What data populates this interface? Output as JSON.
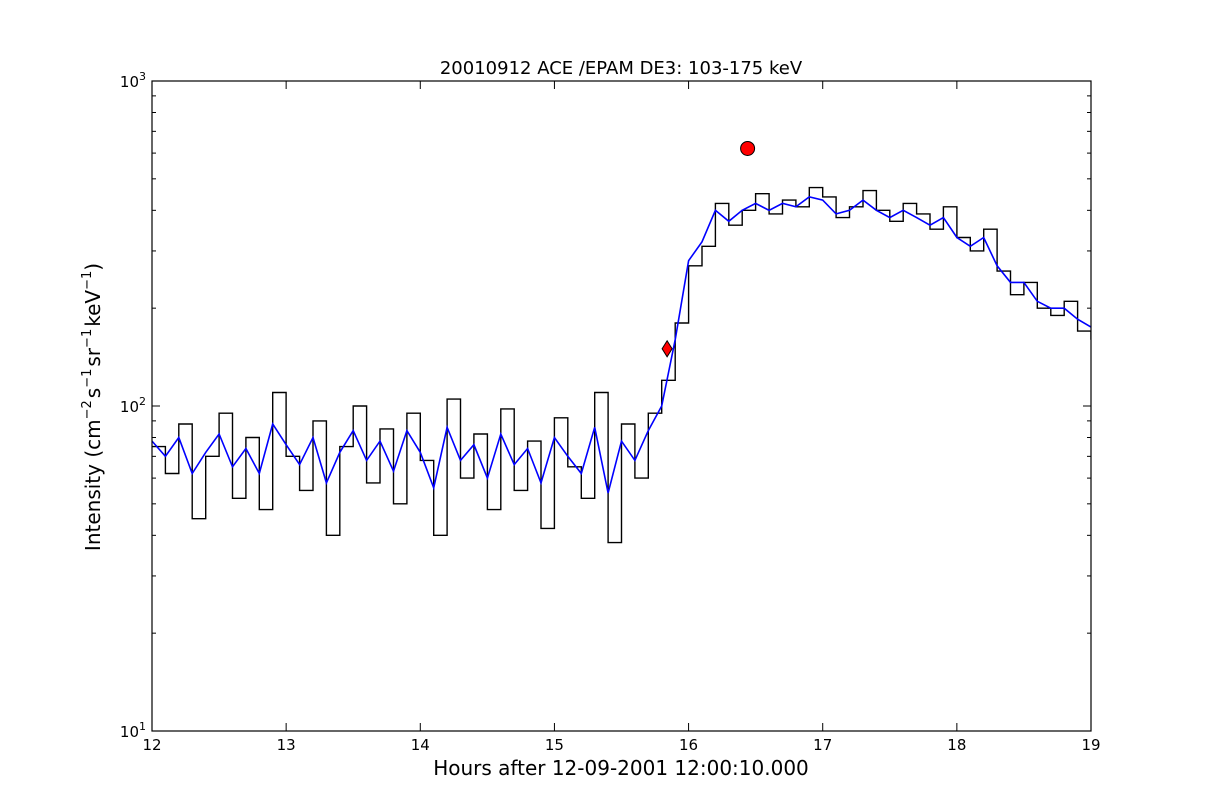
{
  "chart_data": {
    "type": "line",
    "title": "20010912 ACE /EPAM DE3: 103-175 keV",
    "xlabel": "Hours after 12-09-2001 12:00:10.000",
    "ylabel_main": "Intensity (cm",
    "ylabel_parts": [
      "−2",
      "s",
      "−1",
      "sr",
      "−1",
      "keV",
      "−1",
      ")"
    ],
    "xlim": [
      12,
      19
    ],
    "ylim": [
      10,
      1000
    ],
    "yscale": "log",
    "x_ticks": [
      "12",
      "13",
      "14",
      "15",
      "16",
      "17",
      "18",
      "19"
    ],
    "y_ticks": [
      {
        "base": "10",
        "exp": "1",
        "value": 10
      },
      {
        "base": "10",
        "exp": "2",
        "value": 100
      },
      {
        "base": "10",
        "exp": "3",
        "value": 1000
      }
    ],
    "grid": false,
    "series": [
      {
        "color": "#000000",
        "style": "steps",
        "x": [
          12.0,
          12.1,
          12.2,
          12.3,
          12.4,
          12.5,
          12.6,
          12.7,
          12.8,
          12.9,
          13.0,
          13.1,
          13.2,
          13.3,
          13.4,
          13.5,
          13.6,
          13.7,
          13.8,
          13.9,
          14.0,
          14.1,
          14.2,
          14.3,
          14.4,
          14.5,
          14.6,
          14.7,
          14.8,
          14.9,
          15.0,
          15.1,
          15.2,
          15.3,
          15.4,
          15.5,
          15.6,
          15.7,
          15.8,
          15.9,
          16.0,
          16.1,
          16.2,
          16.3,
          16.4,
          16.5,
          16.6,
          16.7,
          16.8,
          16.9,
          17.0,
          17.1,
          17.2,
          17.3,
          17.4,
          17.5,
          17.6,
          17.7,
          17.8,
          17.9,
          18.0,
          18.1,
          18.2,
          18.3,
          18.4,
          18.5,
          18.6,
          18.7,
          18.8,
          18.9,
          19.0
        ],
        "y": [
          75,
          62,
          88,
          45,
          70,
          95,
          52,
          80,
          48,
          110,
          70,
          55,
          90,
          40,
          75,
          100,
          58,
          85,
          50,
          95,
          68,
          40,
          105,
          60,
          82,
          48,
          98,
          55,
          78,
          42,
          92,
          65,
          52,
          110,
          38,
          88,
          60,
          95,
          120,
          180,
          270,
          310,
          420,
          360,
          400,
          450,
          390,
          430,
          410,
          470,
          440,
          380,
          410,
          460,
          400,
          370,
          420,
          390,
          350,
          410,
          330,
          300,
          350,
          260,
          220,
          240,
          200,
          190,
          210,
          170,
          160
        ]
      },
      {
        "color": "#0000ff",
        "style": "line",
        "x": [
          12.0,
          12.1,
          12.2,
          12.3,
          12.4,
          12.5,
          12.6,
          12.7,
          12.8,
          12.9,
          13.0,
          13.1,
          13.2,
          13.3,
          13.4,
          13.5,
          13.6,
          13.7,
          13.8,
          13.9,
          14.0,
          14.1,
          14.2,
          14.3,
          14.4,
          14.5,
          14.6,
          14.7,
          14.8,
          14.9,
          15.0,
          15.1,
          15.2,
          15.3,
          15.4,
          15.5,
          15.6,
          15.7,
          15.8,
          15.9,
          16.0,
          16.1,
          16.2,
          16.3,
          16.4,
          16.5,
          16.6,
          16.7,
          16.8,
          16.9,
          17.0,
          17.1,
          17.2,
          17.3,
          17.4,
          17.5,
          17.6,
          17.7,
          17.8,
          17.9,
          18.0,
          18.1,
          18.2,
          18.3,
          18.4,
          18.5,
          18.6,
          18.7,
          18.8,
          18.9,
          19.0
        ],
        "y": [
          78,
          70,
          80,
          62,
          72,
          82,
          65,
          74,
          62,
          88,
          76,
          66,
          80,
          58,
          72,
          84,
          68,
          78,
          63,
          84,
          72,
          56,
          86,
          68,
          76,
          60,
          82,
          66,
          74,
          58,
          80,
          70,
          62,
          86,
          54,
          78,
          68,
          84,
          100,
          160,
          280,
          320,
          400,
          370,
          400,
          420,
          400,
          420,
          410,
          440,
          430,
          390,
          400,
          430,
          400,
          380,
          400,
          380,
          360,
          380,
          330,
          310,
          330,
          270,
          240,
          240,
          210,
          200,
          200,
          185,
          175
        ]
      }
    ],
    "markers": [
      {
        "x": 15.84,
        "y": 150,
        "shape": "diamond",
        "color": "#ff0000"
      },
      {
        "x": 16.44,
        "y": 620,
        "shape": "circle",
        "color": "#ff0000"
      }
    ]
  }
}
